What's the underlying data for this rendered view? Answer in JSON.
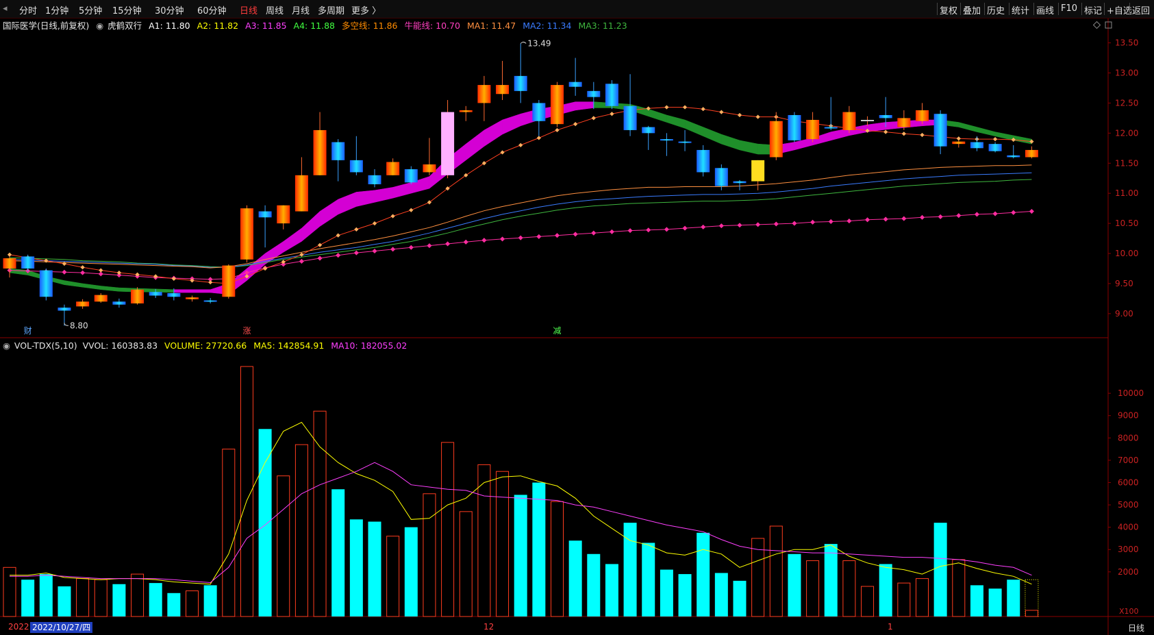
{
  "toolbar": {
    "periods": [
      "分时",
      "1分钟",
      "5分钟",
      "15分钟",
      "30分钟",
      "60分钟",
      "日线",
      "周线",
      "月线",
      "多周期",
      "更多 〉"
    ],
    "active_period": "日线",
    "actions": [
      "复权",
      "叠加",
      "历史",
      "统计",
      "画线",
      "F10",
      "标记",
      "+自选",
      "返回"
    ]
  },
  "main_legend": {
    "stock_title": "国际医学(日线,前复权)",
    "indicator_name": "虎鹤双行",
    "A1": "A1: 11.80",
    "A2": "A2: 11.82",
    "A3": "A3: 11.85",
    "A4": "A4: 11.88",
    "duokong": "多空线: 11.86",
    "niuneng": "牛能线: 10.70",
    "MA1": "MA1: 11.47",
    "MA2": "MA2: 11.34",
    "MA3": "MA3: 11.23"
  },
  "vol_legend": {
    "name": "VOL-TDX(5,10)",
    "vvol": "VVOL: 160383.83",
    "volume": "VOLUME: 27720.66",
    "ma5": "MA5: 142854.91",
    "ma10": "MA10: 182055.02"
  },
  "colors": {
    "up": "#ff3c1e",
    "down": "#22a0ff",
    "vol_down": "#00ffff",
    "magenta": "#d400d4",
    "green_band": "#1f8f2a",
    "ma1": "#ff9040",
    "ma2": "#3a7cff",
    "ma3": "#3fb83f",
    "niuneng": "#ff2ca0",
    "duokong": "#ff4020"
  },
  "price_axis": {
    "ticks": [
      "13.50",
      "13.00",
      "12.50",
      "12.00",
      "11.50",
      "11.00",
      "10.50",
      "10.00",
      "9.50",
      "9.00"
    ],
    "min": 8.6,
    "max": 13.7
  },
  "volume_axis": {
    "ticks": [
      "10000",
      "9000",
      "8000",
      "7000",
      "6000",
      "5000",
      "4000",
      "3000",
      "2000"
    ],
    "unit": "X100",
    "max": 11600
  },
  "annotations": {
    "high_label": "13.49",
    "low_label": "8.80",
    "marker1": "财",
    "marker2": "涨",
    "marker3": "减"
  },
  "x_axis": {
    "label_left": "2022",
    "selected_date": "2022/10/27/四",
    "label_month12": "12",
    "label_month1": "1",
    "period": "日线"
  },
  "chart_data": {
    "type": "candlestick",
    "candles": [
      {
        "o": 9.75,
        "c": 9.92,
        "h": 9.95,
        "l": 9.6,
        "v": 2200
      },
      {
        "o": 9.95,
        "c": 9.75,
        "h": 9.98,
        "l": 9.7,
        "v": 1650
      },
      {
        "o": 9.72,
        "c": 9.28,
        "h": 9.75,
        "l": 9.22,
        "v": 1900
      },
      {
        "o": 9.1,
        "c": 9.05,
        "h": 9.15,
        "l": 8.8,
        "v": 1350
      },
      {
        "o": 9.12,
        "c": 9.2,
        "h": 9.24,
        "l": 9.08,
        "v": 1700
      },
      {
        "o": 9.2,
        "c": 9.31,
        "h": 9.34,
        "l": 9.18,
        "v": 1650
      },
      {
        "o": 9.2,
        "c": 9.15,
        "h": 9.25,
        "l": 9.1,
        "v": 1450
      },
      {
        "o": 9.17,
        "c": 9.4,
        "h": 9.44,
        "l": 9.15,
        "v": 1900
      },
      {
        "o": 9.36,
        "c": 9.3,
        "h": 9.41,
        "l": 9.26,
        "v": 1500
      },
      {
        "o": 9.34,
        "c": 9.28,
        "h": 9.42,
        "l": 9.22,
        "v": 1050
      },
      {
        "o": 9.24,
        "c": 9.27,
        "h": 9.3,
        "l": 9.2,
        "v": 1150
      },
      {
        "o": 9.22,
        "c": 9.2,
        "h": 9.26,
        "l": 9.17,
        "v": 1400
      },
      {
        "o": 9.28,
        "c": 9.8,
        "h": 9.82,
        "l": 9.25,
        "v": 7500
      },
      {
        "o": 9.9,
        "c": 10.75,
        "h": 10.8,
        "l": 9.85,
        "v": 11200
      },
      {
        "o": 10.7,
        "c": 10.6,
        "h": 10.8,
        "l": 10.1,
        "v": 8400
      },
      {
        "o": 10.5,
        "c": 10.8,
        "h": 10.8,
        "l": 10.4,
        "v": 6300
      },
      {
        "o": 10.7,
        "c": 11.3,
        "h": 11.6,
        "l": 10.7,
        "v": 7700
      },
      {
        "o": 11.3,
        "c": 12.05,
        "h": 12.35,
        "l": 11.3,
        "v": 9200
      },
      {
        "o": 11.85,
        "c": 11.55,
        "h": 11.9,
        "l": 11.2,
        "v": 5700
      },
      {
        "o": 11.55,
        "c": 11.35,
        "h": 11.95,
        "l": 11.3,
        "v": 4350
      },
      {
        "o": 11.3,
        "c": 11.15,
        "h": 11.4,
        "l": 11.1,
        "v": 4250
      },
      {
        "o": 11.3,
        "c": 11.52,
        "h": 11.58,
        "l": 11.3,
        "v": 3600
      },
      {
        "o": 11.4,
        "c": 11.18,
        "h": 11.45,
        "l": 11.15,
        "v": 4000
      },
      {
        "o": 11.35,
        "c": 11.48,
        "h": 11.92,
        "l": 11.3,
        "v": 5500
      },
      {
        "o": 11.3,
        "c": 12.35,
        "h": 12.55,
        "l": 11.25,
        "v": 7800
      },
      {
        "o": 12.35,
        "c": 12.38,
        "h": 12.45,
        "l": 12.2,
        "v": 4700
      },
      {
        "o": 12.5,
        "c": 12.8,
        "h": 12.95,
        "l": 12.2,
        "v": 6800
      },
      {
        "o": 12.65,
        "c": 12.8,
        "h": 13.2,
        "l": 12.55,
        "v": 6500
      },
      {
        "o": 12.95,
        "c": 12.7,
        "h": 13.49,
        "l": 12.5,
        "v": 5450
      },
      {
        "o": 12.5,
        "c": 12.2,
        "h": 12.55,
        "l": 11.95,
        "v": 6000
      },
      {
        "o": 12.15,
        "c": 12.8,
        "h": 12.85,
        "l": 12.1,
        "v": 5150
      },
      {
        "o": 12.85,
        "c": 12.77,
        "h": 13.25,
        "l": 12.62,
        "v": 3400
      },
      {
        "o": 12.7,
        "c": 12.6,
        "h": 12.85,
        "l": 12.4,
        "v": 2800
      },
      {
        "o": 12.82,
        "c": 12.45,
        "h": 12.88,
        "l": 12.4,
        "v": 2350
      },
      {
        "o": 12.45,
        "c": 12.05,
        "h": 12.98,
        "l": 11.95,
        "v": 4200
      },
      {
        "o": 12.1,
        "c": 12.0,
        "h": 12.12,
        "l": 11.72,
        "v": 3300
      },
      {
        "o": 11.9,
        "c": 11.88,
        "h": 12.0,
        "l": 11.62,
        "v": 2100
      },
      {
        "o": 11.86,
        "c": 11.84,
        "h": 12.05,
        "l": 11.7,
        "v": 1900
      },
      {
        "o": 11.72,
        "c": 11.35,
        "h": 11.8,
        "l": 11.28,
        "v": 3750
      },
      {
        "o": 11.42,
        "c": 11.12,
        "h": 11.48,
        "l": 11.05,
        "v": 1950
      },
      {
        "o": 11.2,
        "c": 11.17,
        "h": 11.22,
        "l": 11.05,
        "v": 1600
      },
      {
        "o": 11.2,
        "c": 11.55,
        "h": 11.55,
        "l": 11.05,
        "v": 3500
      },
      {
        "o": 11.6,
        "c": 12.2,
        "h": 12.35,
        "l": 11.55,
        "v": 4050
      },
      {
        "o": 12.3,
        "c": 11.88,
        "h": 12.35,
        "l": 11.85,
        "v": 2800
      },
      {
        "o": 11.9,
        "c": 12.22,
        "h": 12.35,
        "l": 11.85,
        "v": 2500
      },
      {
        "o": 12.1,
        "c": 12.08,
        "h": 12.6,
        "l": 12.05,
        "v": 3250
      },
      {
        "o": 12.05,
        "c": 12.35,
        "h": 12.45,
        "l": 12.0,
        "v": 2500
      },
      {
        "o": 12.22,
        "c": 12.22,
        "h": 12.28,
        "l": 12.12,
        "v": 1350
      },
      {
        "o": 12.3,
        "c": 12.25,
        "h": 12.6,
        "l": 12.1,
        "v": 2350
      },
      {
        "o": 12.1,
        "c": 12.25,
        "h": 12.38,
        "l": 12.05,
        "v": 1500
      },
      {
        "o": 12.2,
        "c": 12.38,
        "h": 12.5,
        "l": 12.15,
        "v": 1700
      },
      {
        "o": 12.32,
        "c": 11.78,
        "h": 12.38,
        "l": 11.65,
        "v": 4200
      },
      {
        "o": 11.82,
        "c": 11.86,
        "h": 11.88,
        "l": 11.76,
        "v": 2550
      },
      {
        "o": 11.85,
        "c": 11.75,
        "h": 11.95,
        "l": 11.7,
        "v": 1400
      },
      {
        "o": 11.82,
        "c": 11.7,
        "h": 11.85,
        "l": 11.68,
        "v": 1250
      },
      {
        "o": 11.63,
        "c": 11.6,
        "h": 11.8,
        "l": 11.58,
        "v": 1650
      },
      {
        "o": 11.6,
        "c": 11.72,
        "h": 11.78,
        "l": 11.58,
        "v": 277
      }
    ],
    "ma1": [
      9.88,
      9.87,
      9.86,
      9.85,
      9.84,
      9.83,
      9.82,
      9.81,
      9.8,
      9.79,
      9.78,
      9.76,
      9.78,
      9.83,
      9.9,
      9.96,
      10.02,
      10.08,
      10.13,
      10.18,
      10.23,
      10.29,
      10.36,
      10.43,
      10.52,
      10.62,
      10.71,
      10.78,
      10.84,
      10.9,
      10.96,
      11.0,
      11.03,
      11.06,
      11.08,
      11.1,
      11.1,
      11.11,
      11.11,
      11.11,
      11.12,
      11.14,
      11.16,
      11.19,
      11.22,
      11.26,
      11.3,
      11.33,
      11.36,
      11.39,
      11.41,
      11.43,
      11.44,
      11.45,
      11.46,
      11.46,
      11.47
    ],
    "ma2": [
      9.9,
      9.89,
      9.88,
      9.87,
      9.86,
      9.85,
      9.84,
      9.83,
      9.82,
      9.8,
      9.79,
      9.77,
      9.77,
      9.81,
      9.87,
      9.92,
      9.97,
      10.02,
      10.06,
      10.1,
      10.15,
      10.2,
      10.27,
      10.34,
      10.42,
      10.5,
      10.58,
      10.65,
      10.71,
      10.77,
      10.82,
      10.86,
      10.89,
      10.91,
      10.93,
      10.95,
      10.96,
      10.97,
      10.98,
      10.98,
      10.99,
      11.0,
      11.02,
      11.05,
      11.08,
      11.12,
      11.15,
      11.18,
      11.21,
      11.24,
      11.26,
      11.28,
      11.3,
      11.31,
      11.32,
      11.33,
      11.34
    ],
    "ma3": [
      9.93,
      9.92,
      9.91,
      9.9,
      9.88,
      9.87,
      9.86,
      9.84,
      9.83,
      9.81,
      9.8,
      9.78,
      9.77,
      9.8,
      9.85,
      9.9,
      9.94,
      9.98,
      10.02,
      10.06,
      10.1,
      10.15,
      10.2,
      10.27,
      10.34,
      10.42,
      10.49,
      10.56,
      10.62,
      10.67,
      10.72,
      10.76,
      10.79,
      10.81,
      10.83,
      10.84,
      10.85,
      10.86,
      10.87,
      10.87,
      10.88,
      10.89,
      10.91,
      10.94,
      10.97,
      11.0,
      11.03,
      11.06,
      11.09,
      11.12,
      11.14,
      11.16,
      11.18,
      11.19,
      11.2,
      11.22,
      11.23
    ],
    "duokong": [
      9.98,
      9.93,
      9.88,
      9.83,
      9.77,
      9.72,
      9.68,
      9.65,
      9.62,
      9.58,
      9.55,
      9.52,
      9.5,
      9.62,
      9.75,
      9.86,
      9.98,
      10.14,
      10.3,
      10.4,
      10.5,
      10.62,
      10.72,
      10.85,
      11.08,
      11.3,
      11.5,
      11.68,
      11.8,
      11.92,
      12.05,
      12.15,
      12.25,
      12.32,
      12.38,
      12.41,
      12.43,
      12.43,
      12.4,
      12.35,
      12.3,
      12.27,
      12.27,
      12.2,
      12.16,
      12.12,
      12.08,
      12.04,
      12.02,
      11.99,
      11.97,
      11.94,
      11.91,
      11.9,
      11.9,
      11.89,
      11.86
    ],
    "niuneng": [
      9.72,
      9.71,
      9.7,
      9.69,
      9.68,
      9.66,
      9.64,
      9.62,
      9.6,
      9.59,
      9.58,
      9.57,
      9.58,
      9.68,
      9.76,
      9.82,
      9.87,
      9.92,
      9.97,
      10.01,
      10.04,
      10.07,
      10.1,
      10.13,
      10.16,
      10.19,
      10.22,
      10.24,
      10.26,
      10.28,
      10.3,
      10.32,
      10.34,
      10.36,
      10.38,
      10.39,
      10.4,
      10.42,
      10.44,
      10.46,
      10.47,
      10.48,
      10.49,
      10.5,
      10.52,
      10.53,
      10.54,
      10.56,
      10.57,
      10.58,
      10.6,
      10.61,
      10.63,
      10.65,
      10.66,
      10.68,
      10.7
    ],
    "tiger_upper": [
      9.75,
      9.72,
      9.62,
      9.55,
      9.5,
      9.46,
      9.43,
      9.42,
      9.41,
      9.4,
      9.4,
      9.4,
      9.5,
      9.75,
      10.0,
      10.2,
      10.42,
      10.7,
      10.9,
      11.02,
      11.05,
      11.1,
      11.18,
      11.28,
      11.58,
      11.82,
      12.05,
      12.22,
      12.32,
      12.4,
      12.45,
      12.52,
      12.52,
      12.5,
      12.48,
      12.4,
      12.3,
      12.22,
      12.1,
      11.98,
      11.88,
      11.82,
      11.8,
      11.85,
      11.92,
      12.02,
      12.08,
      12.14,
      12.18,
      12.2,
      12.22,
      12.22,
      12.18,
      12.1,
      12.02,
      11.96,
      11.9
    ],
    "tiger_lower": [
      9.68,
      9.64,
      9.56,
      9.48,
      9.44,
      9.4,
      9.37,
      9.36,
      9.36,
      9.35,
      9.35,
      9.35,
      9.32,
      9.55,
      9.82,
      10.02,
      10.2,
      10.45,
      10.65,
      10.78,
      10.85,
      10.92,
      11.0,
      11.08,
      11.32,
      11.55,
      11.78,
      11.98,
      12.12,
      12.22,
      12.3,
      12.38,
      12.42,
      12.42,
      12.38,
      12.28,
      12.18,
      12.08,
      11.95,
      11.82,
      11.72,
      11.65,
      11.65,
      11.72,
      11.8,
      11.88,
      11.96,
      12.02,
      12.06,
      12.09,
      12.12,
      12.14,
      12.1,
      12.02,
      11.95,
      11.88,
      11.82
    ],
    "vol_ma5": [
      1850,
      1850,
      1950,
      1750,
      1700,
      1650,
      1700,
      1700,
      1650,
      1550,
      1500,
      1450,
      2800,
      5200,
      6900,
      8300,
      8700,
      7600,
      6900,
      6400,
      6100,
      5600,
      4350,
      4400,
      5000,
      5300,
      6000,
      6250,
      6300,
      6050,
      5850,
      5300,
      4500,
      3950,
      3400,
      3200,
      2850,
      2750,
      3000,
      2800,
      2200,
      2500,
      2800,
      3000,
      3000,
      3200,
      2700,
      2400,
      2200,
      2100,
      1900,
      2250,
      2400,
      2150,
      1950,
      1800,
      1450
    ],
    "vol_ma10": [
      1800,
      1800,
      1850,
      1800,
      1750,
      1700,
      1700,
      1700,
      1700,
      1650,
      1580,
      1520,
      2200,
      3500,
      4100,
      4800,
      5500,
      5900,
      6200,
      6500,
      6900,
      6500,
      5900,
      5800,
      5700,
      5650,
      5400,
      5350,
      5300,
      5250,
      5200,
      5000,
      4900,
      4700,
      4500,
      4300,
      4100,
      3950,
      3800,
      3450,
      3150,
      3000,
      2950,
      2900,
      2850,
      2850,
      2800,
      2750,
      2700,
      2650,
      2650,
      2600,
      2550,
      2450,
      2300,
      2200,
      1850
    ]
  }
}
